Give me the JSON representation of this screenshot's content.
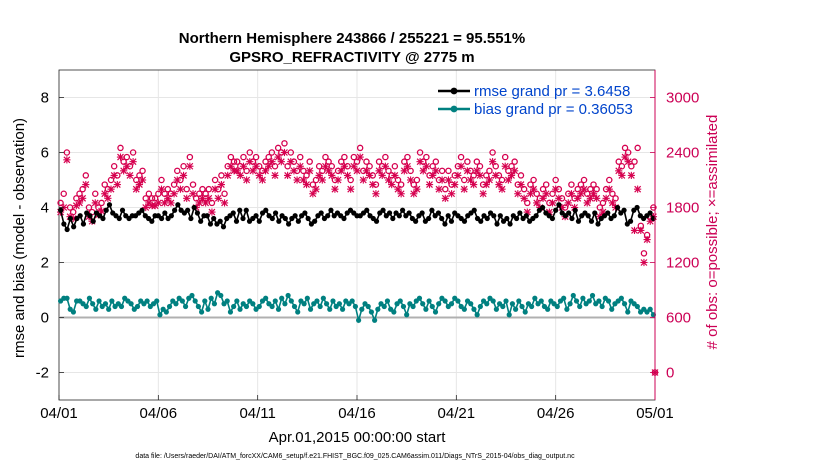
{
  "chart_data": {
    "type": "line",
    "title": [
      "Northern Hemisphere 243866 / 255221 = 95.551%",
      "GPSRO_REFRACTIVITY @ 2775 m"
    ],
    "xlabel": "Apr.01,2015 00:00:00 start",
    "ylabel": "rmse and bias (model - observation)",
    "y2label": "# of obs: o=possible; ×=assimilated",
    "x_ticks": [
      "04/01",
      "04/06",
      "04/11",
      "04/16",
      "04/21",
      "04/26",
      "05/01"
    ],
    "xlim": [
      0,
      30
    ],
    "ylim": [
      -3,
      9
    ],
    "y_ticks": [
      "-2",
      "0",
      "2",
      "4",
      "6",
      "8"
    ],
    "y2lim": [
      -300,
      3300
    ],
    "y2_ticks": [
      "0",
      "600",
      "1200",
      "1800",
      "2400",
      "3000"
    ],
    "grid": true,
    "legend_position": "top-right",
    "footer": "data file: /Users/raeder/DAI/ATM_forcXX/CAM6_setup/f.e21.FHIST_BGC.f09_025.CAM6assim.011/Diags_NTrS_2015-04/obs_diag_output.nc",
    "colors": {
      "rmse": "#000000",
      "bias": "#008080",
      "obs": "#d6004f",
      "zero": "#b0b0b0"
    },
    "series": [
      {
        "name": "rmse grand pr = 3.6458",
        "axis": "left",
        "values": [
          3.9,
          3.4,
          3.2,
          3.6,
          3.3,
          3.6,
          3.7,
          3.4,
          3.8,
          3.7,
          3.5,
          3.8,
          3.7,
          3.6,
          3.9,
          4.1,
          3.8,
          3.7,
          3.6,
          3.9,
          3.7,
          3.6,
          3.7,
          3.7,
          3.8,
          3.9,
          3.7,
          3.6,
          3.5,
          3.7,
          3.7,
          3.6,
          3.8,
          3.6,
          3.7,
          3.9,
          4.1,
          3.9,
          3.8,
          3.9,
          3.6,
          4.0,
          3.8,
          3.5,
          3.7,
          3.7,
          3.4,
          3.6,
          3.4,
          3.5,
          3.3,
          3.6,
          3.7,
          3.8,
          3.5,
          3.9,
          3.6,
          3.9,
          3.5,
          3.6,
          3.7,
          3.5,
          3.8,
          3.9,
          3.7,
          3.6,
          3.8,
          3.5,
          3.7,
          3.6,
          3.4,
          3.6,
          3.7,
          3.5,
          3.7,
          3.8,
          3.6,
          3.4,
          3.5,
          3.7,
          3.8,
          3.6,
          3.7,
          3.9,
          3.7,
          3.8,
          3.7,
          3.6,
          3.8,
          3.9,
          3.8,
          3.7,
          3.7,
          3.8,
          3.9,
          3.7,
          3.6,
          3.5,
          3.8,
          3.9,
          3.7,
          3.8,
          3.6,
          3.8,
          3.7,
          3.9,
          3.7,
          3.8,
          3.6,
          3.5,
          3.7,
          3.8,
          3.5,
          3.6,
          3.9,
          3.7,
          3.8,
          3.6,
          3.4,
          3.7,
          3.5,
          3.8,
          3.7,
          3.6,
          3.5,
          3.7,
          3.8,
          3.9,
          3.6,
          3.5,
          3.7,
          3.6,
          3.8,
          3.7,
          3.4,
          3.7,
          3.5,
          3.6,
          3.4,
          3.7,
          3.6,
          3.8,
          3.6,
          3.7,
          3.5,
          3.6,
          3.7,
          3.9,
          4.0,
          3.8,
          3.7,
          3.6,
          3.9,
          4.1,
          3.8,
          3.7,
          3.8,
          3.6,
          3.9,
          3.5,
          3.7,
          3.8,
          3.7,
          3.5,
          3.8,
          3.4,
          3.6,
          3.7,
          3.8,
          3.6,
          3.7,
          4.0,
          3.8,
          3.9,
          3.4,
          3.5,
          3.9,
          4.0,
          3.7,
          3.6,
          3.7,
          3.8,
          3.6
        ]
      },
      {
        "name": "bias grand pr = 0.36053",
        "axis": "left",
        "values": [
          0.6,
          0.7,
          0.7,
          0.3,
          0.2,
          0.6,
          0.6,
          0.5,
          0.4,
          0.7,
          0.5,
          0.3,
          0.6,
          0.4,
          0.5,
          0.3,
          0.6,
          0.4,
          0.5,
          0.4,
          0.7,
          0.6,
          0.5,
          0.3,
          0.4,
          0.6,
          0.5,
          0.6,
          0.4,
          0.5,
          0.6,
          0.1,
          0.3,
          0.2,
          0.4,
          0.6,
          0.5,
          0.7,
          0.6,
          0.4,
          0.7,
          0.8,
          0.6,
          0.4,
          0.2,
          0.6,
          0.3,
          0.7,
          0.5,
          0.9,
          0.8,
          0.5,
          0.6,
          0.2,
          0.4,
          0.6,
          0.3,
          0.5,
          0.4,
          0.6,
          0.5,
          0.3,
          0.4,
          0.6,
          0.7,
          0.5,
          0.4,
          0.6,
          0.3,
          0.7,
          0.5,
          0.8,
          0.6,
          0.4,
          0.2,
          0.6,
          0.5,
          0.7,
          0.3,
          0.5,
          0.6,
          0.4,
          0.7,
          0.5,
          0.3,
          0.6,
          0.4,
          0.5,
          0.3,
          0.6,
          0.5,
          0.6,
          0.4,
          -0.1,
          0.3,
          0.5,
          0.4,
          0.2,
          -0.1,
          0.3,
          0.5,
          0.4,
          0.6,
          0.3,
          0.2,
          0.5,
          0.6,
          0.4,
          0.1,
          0.5,
          0.4,
          0.6,
          0.7,
          0.5,
          0.3,
          0.6,
          0.4,
          0.2,
          0.5,
          0.7,
          0.6,
          0.4,
          0.5,
          0.7,
          0.6,
          0.4,
          0.3,
          0.6,
          0.5,
          0.3,
          0.1,
          0.4,
          0.6,
          0.5,
          0.7,
          0.6,
          0.3,
          0.5,
          0.4,
          0.6,
          0.1,
          0.5,
          0.3,
          0.6,
          0.4,
          0.2,
          0.5,
          0.4,
          0.7,
          0.5,
          0.6,
          0.4,
          0.3,
          0.6,
          0.5,
          0.4,
          0.6,
          0.7,
          0.3,
          0.5,
          0.8,
          0.6,
          0.4,
          0.7,
          0.5,
          0.6,
          0.8,
          0.5,
          0.6,
          0.4,
          0.7,
          0.6,
          0.3,
          0.5,
          0.6,
          0.7,
          0.5,
          0.2,
          0.6,
          0.5,
          0.4,
          0.2,
          0.3,
          0.2,
          0.3,
          0.1
        ]
      },
      {
        "name": "possible",
        "axis": "right",
        "marker": "circle",
        "values": [
          1850,
          1950,
          2400,
          1800,
          1750,
          1900,
          1950,
          2000,
          2150,
          1800,
          1750,
          1950,
          1800,
          1850,
          2050,
          2000,
          2100,
          2250,
          2150,
          2450,
          2300,
          2350,
          2250,
          2400,
          2100,
          2150,
          2200,
          1900,
          1950,
          1900,
          1900,
          1950,
          2100,
          1950,
          2000,
          1950,
          2050,
          2200,
          2100,
          2250,
          2000,
          2350,
          2050,
          1900,
          1950,
          2000,
          1950,
          2000,
          1850,
          2100,
          2000,
          2150,
          1950,
          2250,
          2350,
          2300,
          2300,
          2250,
          2350,
          2200,
          2400,
          2300,
          2350,
          2250,
          2200,
          2300,
          2350,
          2400,
          2250,
          2450,
          2400,
          2500,
          2250,
          2400,
          2300,
          2200,
          2350,
          2200,
          2150,
          2300,
          2050,
          2100,
          2250,
          2200,
          2350,
          2300,
          2250,
          2100,
          2200,
          2300,
          2350,
          2250,
          2100,
          2350,
          2300,
          2450,
          2200,
          2300,
          2250,
          2150,
          2050,
          2300,
          2250,
          2350,
          2200,
          2150,
          2250,
          2100,
          2050,
          2300,
          2350,
          2200,
          2050,
          2100,
          2400,
          2300,
          2350,
          2150,
          2250,
          2300,
          2100,
          2200,
          2000,
          2200,
          2050,
          2150,
          2250,
          2350,
          2100,
          2300,
          2200,
          2150,
          2300,
          2250,
          2050,
          2150,
          2200,
          2400,
          2250,
          2150,
          2100,
          2350,
          2200,
          2250,
          2300,
          2050,
          2150,
          2000,
          1850,
          2050,
          2100,
          1950,
          1900,
          2000,
          2050,
          1850,
          1950,
          2100,
          2000,
          1900,
          1800,
          1950,
          2050,
          1900,
          2000,
          2050,
          2100,
          1950,
          2000,
          2050,
          2000,
          1800,
          1850,
          2000,
          2100,
          1950,
          1900,
          2300,
          2250,
          2450,
          2400,
          2250,
          2300,
          2450,
          1600,
          1300,
          1500,
          1700,
          1800
        ]
      },
      {
        "name": "assimilated",
        "axis": "right",
        "marker": "x",
        "values": [
          1750,
          1800,
          2320,
          1700,
          1680,
          1820,
          1850,
          1900,
          2050,
          1700,
          1650,
          1850,
          1720,
          1760,
          1950,
          1900,
          2000,
          2150,
          2050,
          2350,
          2200,
          2250,
          2150,
          2300,
          2000,
          2050,
          2100,
          1800,
          1850,
          1820,
          1820,
          1850,
          2000,
          1850,
          1900,
          1850,
          1950,
          2100,
          2000,
          2150,
          1900,
          2250,
          1950,
          1800,
          1850,
          1900,
          1850,
          1900,
          1750,
          2000,
          1900,
          2050,
          1850,
          2150,
          2250,
          2200,
          2200,
          2150,
          2250,
          2100,
          2300,
          2200,
          2250,
          2150,
          2100,
          2200,
          2250,
          2300,
          2150,
          2350,
          2300,
          2400,
          2150,
          2300,
          2200,
          2100,
          2250,
          2100,
          2050,
          2200,
          1950,
          2000,
          2150,
          2100,
          2250,
          2200,
          2150,
          2000,
          2100,
          2200,
          2250,
          2150,
          2000,
          2250,
          2200,
          2350,
          2100,
          2200,
          2150,
          2050,
          1950,
          2200,
          2150,
          2250,
          2100,
          2050,
          2150,
          2000,
          1950,
          2200,
          2250,
          2100,
          1950,
          2000,
          2300,
          2200,
          2250,
          2050,
          2150,
          2200,
          2000,
          2100,
          1900,
          2100,
          1950,
          2050,
          2150,
          2250,
          2000,
          2200,
          2100,
          2050,
          2200,
          2150,
          1950,
          2050,
          2100,
          2300,
          2150,
          2050,
          2000,
          2250,
          2100,
          2150,
          2200,
          1950,
          2050,
          1900,
          1750,
          1950,
          2000,
          1850,
          1800,
          1900,
          1950,
          1750,
          1850,
          2000,
          1900,
          1800,
          1700,
          1850,
          1950,
          1800,
          1900,
          1950,
          2000,
          1850,
          1900,
          1950,
          1900,
          1700,
          1750,
          1900,
          2000,
          1850,
          1800,
          2200,
          2150,
          2350,
          2300,
          2150,
          1550,
          2000,
          1550,
          1200,
          1450,
          1650,
          1700
        ]
      },
      {
        "name": "possible-offscale",
        "axis": "right",
        "marker": "circle",
        "x": [
          30
        ],
        "values": [
          0
        ]
      },
      {
        "name": "assimilated-offscale",
        "axis": "right",
        "marker": "x",
        "x": [
          30
        ],
        "values": [
          0
        ]
      }
    ]
  }
}
